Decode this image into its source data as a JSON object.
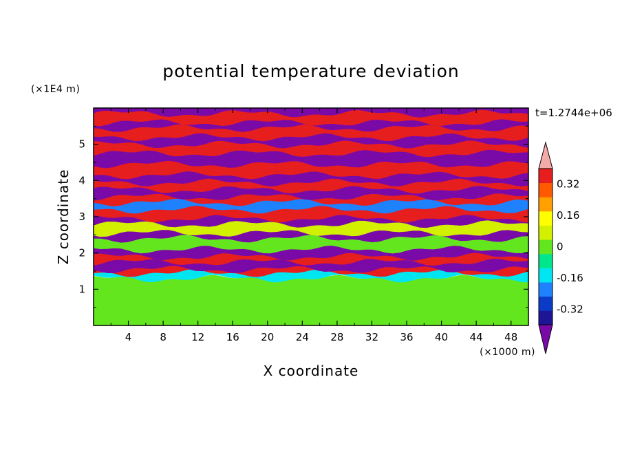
{
  "chart_data": {
    "type": "heatmap",
    "title": "potential temperature deviation",
    "xlabel": "X coordinate",
    "ylabel": "Z coordinate",
    "x_unit": "(×1000 m)",
    "y_unit": "(×1E4 m)",
    "time_label": "t=1.2744e+06",
    "xlim": [
      0,
      50
    ],
    "ylim": [
      0,
      6
    ],
    "x_ticks": [
      4,
      8,
      12,
      16,
      20,
      24,
      28,
      32,
      36,
      40,
      44,
      48
    ],
    "y_ticks": [
      1,
      2,
      3,
      4,
      5
    ],
    "colorbar": {
      "levels": [
        -0.4,
        -0.32,
        -0.24,
        -0.16,
        -0.08,
        0,
        0.08,
        0.16,
        0.24,
        0.32,
        0.4
      ],
      "labels": [
        "0.32",
        "0.16",
        "0",
        "-0.16",
        "-0.32"
      ],
      "label_values": [
        0.32,
        0.16,
        0,
        -0.16,
        -0.32
      ],
      "colors": [
        "#7a0aa8",
        "#1e1496",
        "#0a3cc8",
        "#1e82ff",
        "#00e6f0",
        "#00e68c",
        "#64e61e",
        "#d2f000",
        "#ffff00",
        "#ffa000",
        "#ff5a00",
        "#e61e1e",
        "#f5aaaa"
      ]
    },
    "layers": [
      {
        "z": [
          0.0,
          0.6
        ],
        "value": 0.05
      },
      {
        "z": [
          0.6,
          1.3
        ],
        "value": 0.03
      },
      {
        "z": [
          1.3,
          1.45
        ],
        "value": -0.1
      },
      {
        "z": [
          1.45,
          1.55
        ],
        "value": 0.45
      },
      {
        "z": [
          1.55,
          1.75
        ],
        "value": -0.45
      },
      {
        "z": [
          1.75,
          1.9
        ],
        "value": 0.45
      },
      {
        "z": [
          1.9,
          2.1
        ],
        "value": -0.45
      },
      {
        "z": [
          2.1,
          2.4
        ],
        "value": 0.0
      },
      {
        "z": [
          2.4,
          2.55
        ],
        "value": -0.45
      },
      {
        "z": [
          2.55,
          2.8
        ],
        "value": 0.1
      },
      {
        "z": [
          2.8,
          2.95
        ],
        "value": -0.45
      },
      {
        "z": [
          2.95,
          3.2
        ],
        "value": 0.45
      },
      {
        "z": [
          3.2,
          3.4
        ],
        "value": -0.2
      },
      {
        "z": [
          3.4,
          3.55
        ],
        "value": 0.45
      },
      {
        "z": [
          3.55,
          3.75
        ],
        "value": -0.45
      },
      {
        "z": [
          3.75,
          3.95
        ],
        "value": 0.45
      },
      {
        "z": [
          3.95,
          4.15
        ],
        "value": -0.45
      },
      {
        "z": [
          4.15,
          4.45
        ],
        "value": 0.45
      },
      {
        "z": [
          4.45,
          4.75
        ],
        "value": -0.45
      },
      {
        "z": [
          4.75,
          5.0
        ],
        "value": 0.45
      },
      {
        "z": [
          5.0,
          5.2
        ],
        "value": -0.45
      },
      {
        "z": [
          5.2,
          5.45
        ],
        "value": 0.45
      },
      {
        "z": [
          5.45,
          5.6
        ],
        "value": -0.45
      },
      {
        "z": [
          5.6,
          5.85
        ],
        "value": 0.45
      },
      {
        "z": [
          5.85,
          6.0
        ],
        "value": -0.45
      }
    ]
  }
}
